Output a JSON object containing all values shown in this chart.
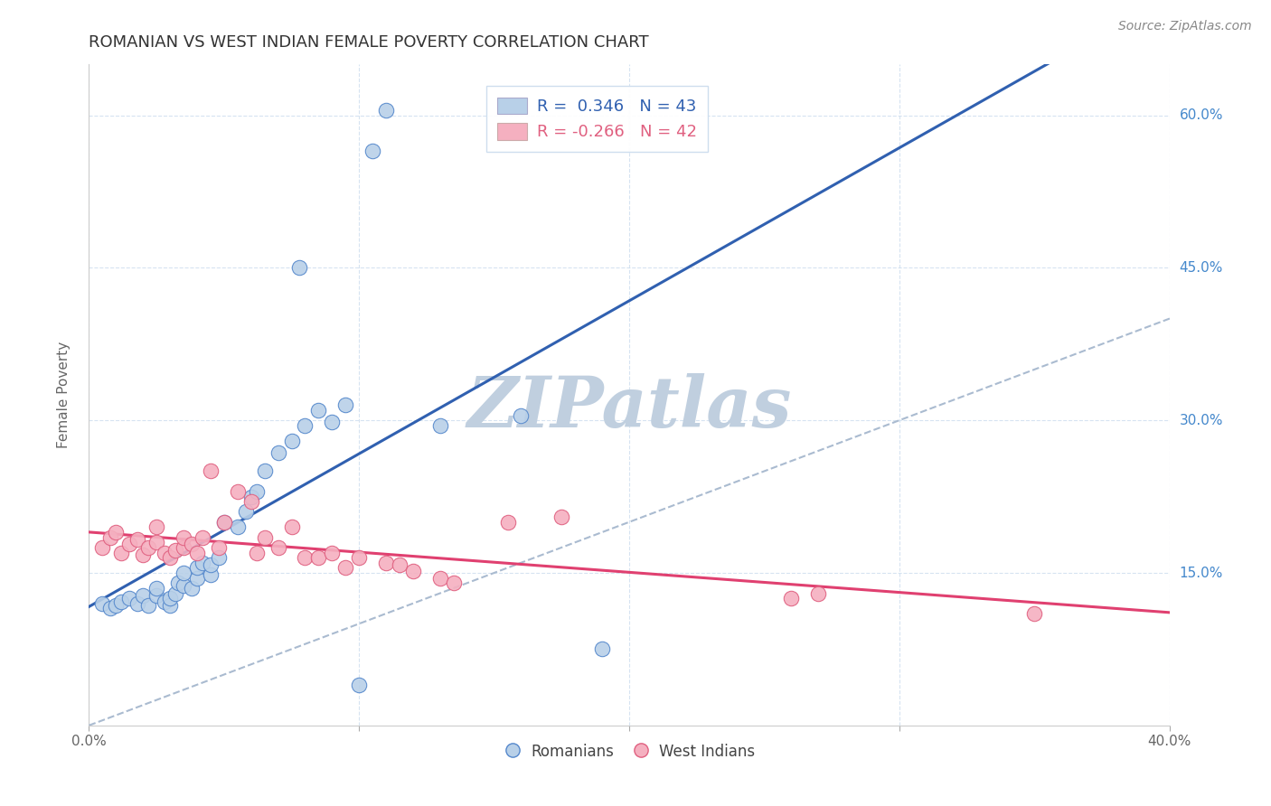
{
  "title": "ROMANIAN VS WEST INDIAN FEMALE POVERTY CORRELATION CHART",
  "source": "Source: ZipAtlas.com",
  "ylabel": "Female Poverty",
  "ytick_labels": [
    "15.0%",
    "30.0%",
    "45.0%",
    "60.0%"
  ],
  "ytick_values": [
    0.15,
    0.3,
    0.45,
    0.6
  ],
  "xlim": [
    0.0,
    0.4
  ],
  "ylim": [
    0.0,
    0.65
  ],
  "blue_R": 0.346,
  "blue_N": 43,
  "pink_R": -0.266,
  "pink_N": 42,
  "blue_color": "#b8d0e8",
  "pink_color": "#f5b0c0",
  "blue_edge_color": "#5588cc",
  "pink_edge_color": "#e06080",
  "blue_line_color": "#3060b0",
  "pink_line_color": "#e04070",
  "dashed_line_color": "#aabbd0",
  "watermark_color": "#c0cfdf",
  "legend_blue_label": "Romanians",
  "legend_pink_label": "West Indians",
  "blue_scatter_x": [
    0.005,
    0.008,
    0.01,
    0.012,
    0.015,
    0.018,
    0.02,
    0.022,
    0.025,
    0.025,
    0.028,
    0.03,
    0.03,
    0.032,
    0.033,
    0.035,
    0.035,
    0.038,
    0.04,
    0.04,
    0.042,
    0.045,
    0.045,
    0.048,
    0.05,
    0.055,
    0.058,
    0.06,
    0.062,
    0.065,
    0.07,
    0.075,
    0.078,
    0.08,
    0.085,
    0.09,
    0.095,
    0.1,
    0.105,
    0.11,
    0.13,
    0.16,
    0.19
  ],
  "blue_scatter_y": [
    0.12,
    0.115,
    0.118,
    0.122,
    0.125,
    0.12,
    0.128,
    0.118,
    0.128,
    0.135,
    0.122,
    0.118,
    0.125,
    0.13,
    0.14,
    0.138,
    0.15,
    0.135,
    0.145,
    0.155,
    0.16,
    0.148,
    0.158,
    0.165,
    0.2,
    0.195,
    0.21,
    0.225,
    0.23,
    0.25,
    0.268,
    0.28,
    0.45,
    0.295,
    0.31,
    0.298,
    0.315,
    0.04,
    0.565,
    0.605,
    0.295,
    0.305,
    0.075
  ],
  "pink_scatter_x": [
    0.005,
    0.008,
    0.01,
    0.012,
    0.015,
    0.018,
    0.02,
    0.022,
    0.025,
    0.025,
    0.028,
    0.03,
    0.032,
    0.035,
    0.035,
    0.038,
    0.04,
    0.042,
    0.045,
    0.048,
    0.05,
    0.055,
    0.06,
    0.062,
    0.065,
    0.07,
    0.075,
    0.08,
    0.085,
    0.09,
    0.095,
    0.1,
    0.11,
    0.115,
    0.12,
    0.13,
    0.135,
    0.155,
    0.175,
    0.26,
    0.27,
    0.35
  ],
  "pink_scatter_y": [
    0.175,
    0.185,
    0.19,
    0.17,
    0.178,
    0.183,
    0.168,
    0.175,
    0.18,
    0.195,
    0.17,
    0.165,
    0.172,
    0.175,
    0.185,
    0.178,
    0.17,
    0.185,
    0.25,
    0.175,
    0.2,
    0.23,
    0.22,
    0.17,
    0.185,
    0.175,
    0.195,
    0.165,
    0.165,
    0.17,
    0.155,
    0.165,
    0.16,
    0.158,
    0.152,
    0.145,
    0.14,
    0.2,
    0.205,
    0.125,
    0.13,
    0.11
  ]
}
